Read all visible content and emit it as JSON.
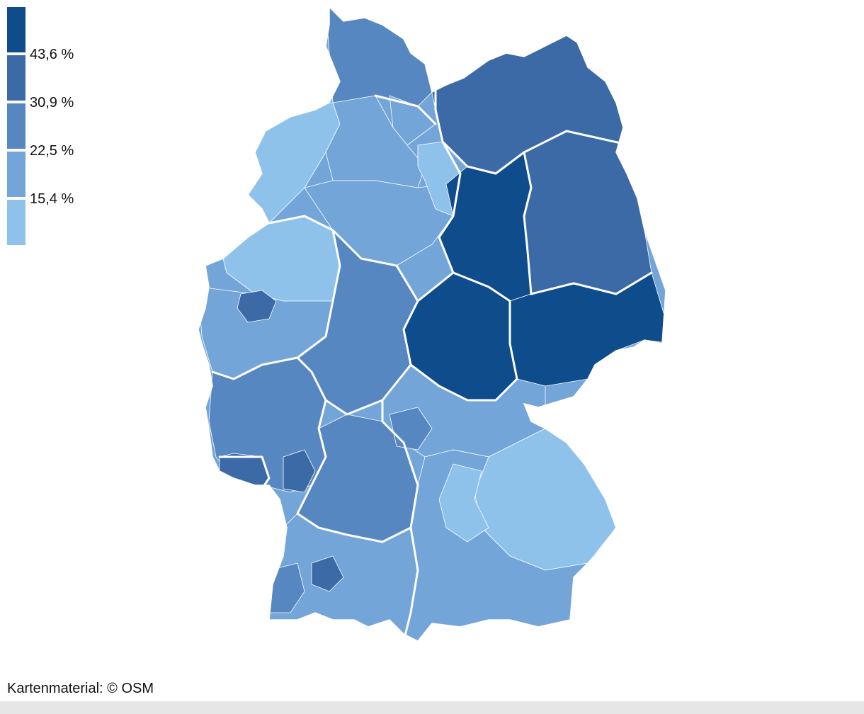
{
  "legend": {
    "classes": [
      {
        "color": "#0f4c8c",
        "label": "43,6 %"
      },
      {
        "color": "#3b6aa7",
        "label": "30,9 %"
      },
      {
        "color": "#5787c0",
        "label": "22,5 %"
      },
      {
        "color": "#73a5d8",
        "label": "15,4 %"
      },
      {
        "color": "#8fc2ea",
        "label": ""
      }
    ]
  },
  "map": {
    "border_color": "#ffffff"
  },
  "credit": "Kartenmaterial: © OSM"
}
